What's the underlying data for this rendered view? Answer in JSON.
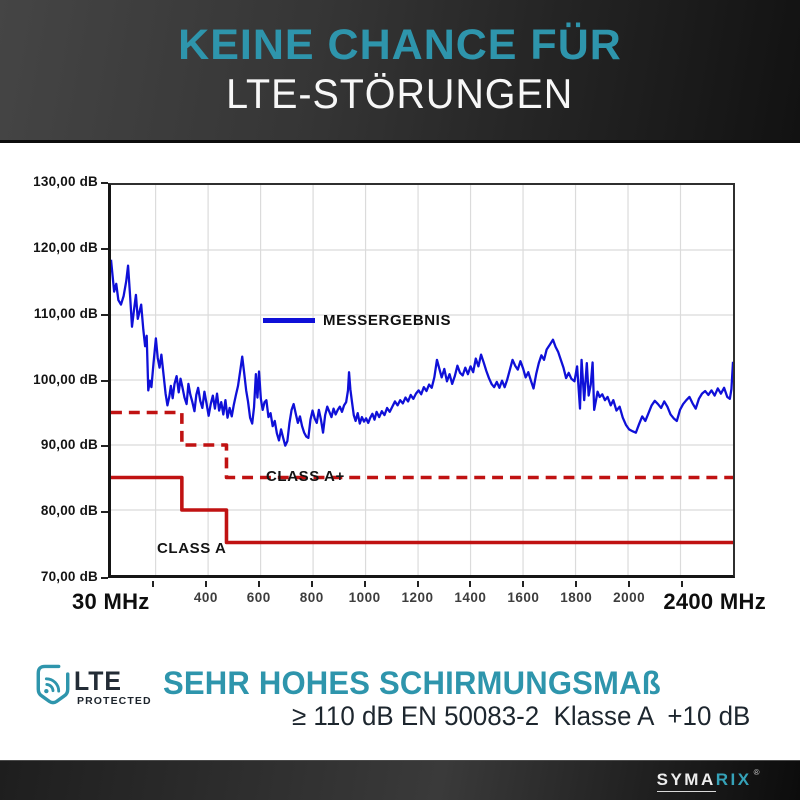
{
  "header": {
    "line1": "KEINE CHANCE FÜR",
    "line2": "LTE-STÖRUNGEN"
  },
  "chart_data": {
    "type": "line",
    "xlabel_left": "30 MHz",
    "xlabel_right": "2400 MHz",
    "x_unit": "MHz",
    "y_unit": "dB",
    "xlim": [
      30,
      2400
    ],
    "ylim": [
      70,
      130
    ],
    "grid": true,
    "grid_color": "#dbdbdb",
    "x_gridlines": [
      200,
      400,
      600,
      800,
      1000,
      1200,
      1400,
      1600,
      1800,
      2000,
      2200
    ],
    "y_gridlines": [
      80,
      90,
      100,
      110,
      120
    ],
    "x_ticks": [
      {
        "mhz": 400,
        "label": "400"
      },
      {
        "mhz": 600,
        "label": "600"
      },
      {
        "mhz": 800,
        "label": "800"
      },
      {
        "mhz": 1000,
        "label": "1000"
      },
      {
        "mhz": 1200,
        "label": "1200"
      },
      {
        "mhz": 1400,
        "label": "1400"
      },
      {
        "mhz": 1600,
        "label": "1600"
      },
      {
        "mhz": 1800,
        "label": "1800"
      },
      {
        "mhz": 2000,
        "label": "2000"
      }
    ],
    "y_ticks": [
      {
        "db": 130,
        "label": "130,00 dB"
      },
      {
        "db": 120,
        "label": "120,00 dB"
      },
      {
        "db": 110,
        "label": "110,00 dB"
      },
      {
        "db": 100,
        "label": "100,00 dB"
      },
      {
        "db": 90,
        "label": "90,00 dB"
      },
      {
        "db": 80,
        "label": "80,00 dB"
      },
      {
        "db": 70,
        "label": "70,00 dB"
      }
    ],
    "legend": {
      "label": "MESSERGEBNIS",
      "position": "inside-top-left"
    },
    "series": [
      {
        "name": "MESSERGEBNIS",
        "label": "MESSERGEBNIS",
        "color": "#0f10d8",
        "width": 2.3,
        "dash": "",
        "points": [
          [
            30,
            118.5
          ],
          [
            42,
            113.6
          ],
          [
            50,
            114.8
          ],
          [
            58,
            112.3
          ],
          [
            68,
            111.6
          ],
          [
            78,
            112.9
          ],
          [
            88,
            115.2
          ],
          [
            95,
            117.6
          ],
          [
            103,
            112.8
          ],
          [
            110,
            108.2
          ],
          [
            118,
            110.9
          ],
          [
            125,
            113.1
          ],
          [
            132,
            109.4
          ],
          [
            138,
            110.4
          ],
          [
            145,
            111.6
          ],
          [
            153,
            107.8
          ],
          [
            160,
            105.2
          ],
          [
            166,
            106.8
          ],
          [
            172,
            98.4
          ],
          [
            178,
            99.9
          ],
          [
            184,
            98.9
          ],
          [
            192,
            102.6
          ],
          [
            201,
            106.4
          ],
          [
            208,
            103.4
          ],
          [
            215,
            101.9
          ],
          [
            222,
            103.9
          ],
          [
            230,
            100.9
          ],
          [
            238,
            97.9
          ],
          [
            245,
            96.1
          ],
          [
            252,
            97.4
          ],
          [
            258,
            99.1
          ],
          [
            265,
            97.2
          ],
          [
            272,
            99.4
          ],
          [
            280,
            100.6
          ],
          [
            288,
            98.1
          ],
          [
            295,
            100.2
          ],
          [
            302,
            98.9
          ],
          [
            310,
            97.3
          ],
          [
            318,
            96.3
          ],
          [
            325,
            99.4
          ],
          [
            332,
            97.8
          ],
          [
            340,
            96.6
          ],
          [
            348,
            95.2
          ],
          [
            355,
            97.7
          ],
          [
            362,
            98.8
          ],
          [
            370,
            96.8
          ],
          [
            378,
            95.7
          ],
          [
            386,
            98.2
          ],
          [
            394,
            96.4
          ],
          [
            402,
            94.5
          ],
          [
            410,
            96.3
          ],
          [
            418,
            97.6
          ],
          [
            426,
            95.6
          ],
          [
            434,
            97.9
          ],
          [
            442,
            95.3
          ],
          [
            450,
            96.6
          ],
          [
            458,
            94.7
          ],
          [
            466,
            96.9
          ],
          [
            474,
            94.2
          ],
          [
            482,
            95.7
          ],
          [
            490,
            94.4
          ],
          [
            498,
            96.2
          ],
          [
            506,
            97.7
          ],
          [
            514,
            99.1
          ],
          [
            522,
            101.3
          ],
          [
            530,
            103.6
          ],
          [
            538,
            100.9
          ],
          [
            545,
            98.4
          ],
          [
            552,
            96.7
          ],
          [
            560,
            94.2
          ],
          [
            568,
            93.3
          ],
          [
            575,
            95.8
          ],
          [
            582,
            100.9
          ],
          [
            588,
            97.3
          ],
          [
            594,
            101.3
          ],
          [
            601,
            97.1
          ],
          [
            608,
            95.4
          ],
          [
            615,
            96.6
          ],
          [
            622,
            96.9
          ],
          [
            630,
            94.3
          ],
          [
            638,
            94.9
          ],
          [
            646,
            92.9
          ],
          [
            654,
            93.7
          ],
          [
            662,
            91.8
          ],
          [
            670,
            90.7
          ],
          [
            678,
            92.4
          ],
          [
            686,
            91.1
          ],
          [
            694,
            89.9
          ],
          [
            702,
            90.6
          ],
          [
            710,
            93.4
          ],
          [
            718,
            95.4
          ],
          [
            726,
            96.3
          ],
          [
            734,
            94.8
          ],
          [
            742,
            93.4
          ],
          [
            750,
            94.4
          ],
          [
            758,
            92.9
          ],
          [
            766,
            91.9
          ],
          [
            774,
            91.3
          ],
          [
            782,
            91.1
          ],
          [
            790,
            93.9
          ],
          [
            798,
            95.3
          ],
          [
            806,
            94.1
          ],
          [
            814,
            93.4
          ],
          [
            822,
            95.4
          ],
          [
            830,
            93.9
          ],
          [
            838,
            91.9
          ],
          [
            846,
            94.6
          ],
          [
            854,
            95.9
          ],
          [
            862,
            95.1
          ],
          [
            870,
            94.3
          ],
          [
            878,
            95.6
          ],
          [
            886,
            94.7
          ],
          [
            894,
            95.4
          ],
          [
            902,
            95.9
          ],
          [
            910,
            95.1
          ],
          [
            918,
            96.1
          ],
          [
            926,
            96.6
          ],
          [
            933,
            98.4
          ],
          [
            937,
            101.2
          ],
          [
            942,
            98.6
          ],
          [
            948,
            96.7
          ],
          [
            955,
            94.6
          ],
          [
            962,
            93.7
          ],
          [
            970,
            94.9
          ],
          [
            978,
            93.3
          ],
          [
            986,
            94.3
          ],
          [
            994,
            93.6
          ],
          [
            1002,
            94.1
          ],
          [
            1010,
            93.4
          ],
          [
            1018,
            94.2
          ],
          [
            1026,
            94.8
          ],
          [
            1034,
            93.9
          ],
          [
            1042,
            95.1
          ],
          [
            1052,
            94.3
          ],
          [
            1062,
            95.2
          ],
          [
            1072,
            94.6
          ],
          [
            1082,
            95.7
          ],
          [
            1092,
            95.1
          ],
          [
            1102,
            95.9
          ],
          [
            1112,
            96.7
          ],
          [
            1122,
            96.1
          ],
          [
            1132,
            96.9
          ],
          [
            1142,
            96.4
          ],
          [
            1152,
            97.3
          ],
          [
            1162,
            96.7
          ],
          [
            1172,
            97.7
          ],
          [
            1182,
            97.1
          ],
          [
            1192,
            97.9
          ],
          [
            1202,
            98.4
          ],
          [
            1212,
            97.8
          ],
          [
            1222,
            98.9
          ],
          [
            1232,
            98.3
          ],
          [
            1242,
            99.3
          ],
          [
            1252,
            98.8
          ],
          [
            1262,
            100.4
          ],
          [
            1272,
            103.1
          ],
          [
            1280,
            101.9
          ],
          [
            1290,
            100.4
          ],
          [
            1300,
            101.7
          ],
          [
            1310,
            99.8
          ],
          [
            1320,
            100.9
          ],
          [
            1330,
            99.4
          ],
          [
            1340,
            100.6
          ],
          [
            1350,
            102.2
          ],
          [
            1360,
            101.1
          ],
          [
            1370,
            100.7
          ],
          [
            1380,
            101.9
          ],
          [
            1390,
            100.9
          ],
          [
            1400,
            102.1
          ],
          [
            1410,
            101.2
          ],
          [
            1420,
            103.3
          ],
          [
            1430,
            102.1
          ],
          [
            1440,
            103.9
          ],
          [
            1450,
            102.7
          ],
          [
            1460,
            101.4
          ],
          [
            1470,
            100.3
          ],
          [
            1480,
            99.4
          ],
          [
            1490,
            98.9
          ],
          [
            1500,
            99.7
          ],
          [
            1510,
            98.8
          ],
          [
            1520,
            99.9
          ],
          [
            1530,
            98.9
          ],
          [
            1540,
            100.1
          ],
          [
            1550,
            101.6
          ],
          [
            1560,
            103.1
          ],
          [
            1570,
            102.2
          ],
          [
            1580,
            101.6
          ],
          [
            1590,
            102.9
          ],
          [
            1600,
            101.8
          ],
          [
            1610,
            100.4
          ],
          [
            1620,
            101.2
          ],
          [
            1630,
            99.9
          ],
          [
            1640,
            98.7
          ],
          [
            1650,
            100.9
          ],
          [
            1660,
            102.6
          ],
          [
            1670,
            103.8
          ],
          [
            1680,
            103.1
          ],
          [
            1690,
            104.7
          ],
          [
            1700,
            105.3
          ],
          [
            1714,
            106.2
          ],
          [
            1724,
            105.1
          ],
          [
            1734,
            104.3
          ],
          [
            1744,
            103.1
          ],
          [
            1754,
            101.9
          ],
          [
            1764,
            100.3
          ],
          [
            1774,
            101.1
          ],
          [
            1784,
            100.2
          ],
          [
            1796,
            99.8
          ],
          [
            1806,
            102.1
          ],
          [
            1817,
            95.6
          ],
          [
            1823,
            103.1
          ],
          [
            1833,
            96.9
          ],
          [
            1843,
            102.6
          ],
          [
            1850,
            97.6
          ],
          [
            1858,
            99.3
          ],
          [
            1865,
            102.7
          ],
          [
            1871,
            95.4
          ],
          [
            1878,
            96.9
          ],
          [
            1884,
            98.2
          ],
          [
            1892,
            97.4
          ],
          [
            1902,
            97.8
          ],
          [
            1912,
            96.9
          ],
          [
            1922,
            97.4
          ],
          [
            1934,
            96.1
          ],
          [
            1944,
            96.9
          ],
          [
            1956,
            95.3
          ],
          [
            1968,
            95.9
          ],
          [
            1980,
            94.2
          ],
          [
            1992,
            93.1
          ],
          [
            2004,
            92.4
          ],
          [
            2018,
            92.1
          ],
          [
            2030,
            91.9
          ],
          [
            2042,
            93.2
          ],
          [
            2054,
            94.4
          ],
          [
            2066,
            93.7
          ],
          [
            2078,
            94.9
          ],
          [
            2090,
            96.1
          ],
          [
            2102,
            96.8
          ],
          [
            2114,
            96.3
          ],
          [
            2126,
            95.7
          ],
          [
            2138,
            96.7
          ],
          [
            2150,
            95.9
          ],
          [
            2162,
            94.7
          ],
          [
            2174,
            94.1
          ],
          [
            2186,
            93.7
          ],
          [
            2198,
            95.4
          ],
          [
            2210,
            96.3
          ],
          [
            2222,
            96.9
          ],
          [
            2234,
            97.4
          ],
          [
            2246,
            96.4
          ],
          [
            2258,
            95.6
          ],
          [
            2270,
            97.1
          ],
          [
            2282,
            97.9
          ],
          [
            2294,
            98.3
          ],
          [
            2306,
            97.7
          ],
          [
            2318,
            98.4
          ],
          [
            2330,
            97.6
          ],
          [
            2342,
            98.7
          ],
          [
            2354,
            97.9
          ],
          [
            2366,
            98.8
          ],
          [
            2378,
            97.4
          ],
          [
            2388,
            97.1
          ],
          [
            2394,
            98.6
          ],
          [
            2400,
            102.8
          ]
        ]
      },
      {
        "name": "CLASS A+",
        "label": "CLASS A+",
        "color": "#c01212",
        "width": 3.6,
        "dash": "11 7",
        "points": [
          [
            30,
            95
          ],
          [
            300,
            95
          ],
          [
            300,
            90
          ],
          [
            470,
            90
          ],
          [
            470,
            85
          ],
          [
            2400,
            85
          ]
        ]
      },
      {
        "name": "CLASS A",
        "label": "CLASS A",
        "color": "#c01212",
        "width": 3.6,
        "dash": "",
        "points": [
          [
            30,
            85
          ],
          [
            300,
            85
          ],
          [
            300,
            80
          ],
          [
            470,
            80
          ],
          [
            470,
            75
          ],
          [
            2400,
            75
          ]
        ]
      }
    ]
  },
  "footer": {
    "logo_lte": "LTE",
    "logo_protected": "PROTECTED",
    "headline": "SEHR HOHES SCHIRMUNGSMAß",
    "subline": "≥ 110 dB EN 50083-2  Klasse A  +10 dB"
  },
  "brand": {
    "syma": "SYMA",
    "rix": "RIX",
    "reg": "®"
  },
  "colors": {
    "teal": "#2e95ac",
    "blue": "#0f10d8",
    "red": "#c01212",
    "grid": "#dbdbdb",
    "axis": "#151515",
    "tick_gray": "#3d3d3d",
    "header_bg_dark": "#232323",
    "white": "#ffffff"
  }
}
